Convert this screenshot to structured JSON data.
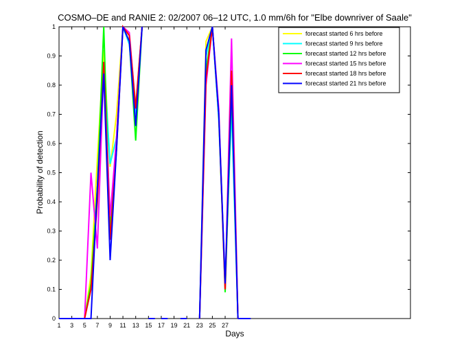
{
  "chart_data": {
    "type": "line",
    "title": "COSMO–DE and RANIE 2: 02/2007 06–12 UTC, 1.0 mm/6h for \"Elbe downriver of Saale\"",
    "xlabel": "Days",
    "ylabel": "Probability of detection",
    "xlim": [
      1,
      56
    ],
    "ylim": [
      0,
      1
    ],
    "xticks": [
      1,
      3,
      5,
      7,
      9,
      11,
      13,
      15,
      17,
      19,
      21,
      23,
      25,
      27
    ],
    "yticks": [
      0,
      0.1,
      0.2,
      0.3,
      0.4,
      0.5,
      0.6,
      0.7,
      0.8,
      0.9,
      1
    ],
    "ytick_labels": [
      "0",
      "0.1",
      "0.2",
      "0.3",
      "0.4",
      "0.5",
      "0.6",
      "0.7",
      "0.8",
      "0.9",
      "1"
    ],
    "grid": false,
    "legend_position": "top-right",
    "series": [
      {
        "name": "forecast started 6 hrs before",
        "color": "#ffff00",
        "segments": [
          [
            [
              1,
              0
            ],
            [
              2,
              0
            ],
            [
              3,
              0
            ],
            [
              4,
              0
            ],
            [
              5,
              0
            ]
          ],
          [
            [
              5,
              0
            ],
            [
              6,
              0.15
            ],
            [
              7,
              0.55
            ],
            [
              8,
              0.92
            ],
            [
              9,
              0.52
            ],
            [
              10,
              0.7
            ],
            [
              11,
              1
            ],
            [
              12,
              0.97
            ],
            [
              13,
              0.73
            ],
            [
              14,
              1
            ]
          ],
          [
            [
              23,
              0
            ],
            [
              24,
              0.95
            ],
            [
              25,
              1
            ],
            [
              26,
              0.7
            ],
            [
              27,
              0.1
            ],
            [
              28,
              0.75
            ],
            [
              29,
              0
            ]
          ]
        ]
      },
      {
        "name": "forecast started 9 hrs before",
        "color": "#00ffff",
        "segments": [
          [
            [
              1,
              0
            ],
            [
              2,
              0
            ],
            [
              3,
              0
            ],
            [
              4,
              0
            ],
            [
              5,
              0
            ]
          ],
          [
            [
              5,
              0
            ],
            [
              6,
              0.1
            ],
            [
              7,
              0.45
            ],
            [
              8,
              0.88
            ],
            [
              9,
              0.53
            ],
            [
              10,
              0.62
            ],
            [
              11,
              1
            ],
            [
              12,
              0.94
            ],
            [
              13,
              0.7
            ],
            [
              14,
              1
            ]
          ],
          [
            [
              23,
              0
            ],
            [
              24,
              0.9
            ],
            [
              25,
              1
            ],
            [
              26,
              0.68
            ],
            [
              27,
              0.12
            ],
            [
              28,
              0.72
            ],
            [
              29,
              0
            ]
          ]
        ]
      },
      {
        "name": "forecast started 12 hrs before",
        "color": "#00ff00",
        "segments": [
          [
            [
              1,
              0
            ],
            [
              2,
              0
            ],
            [
              3,
              0
            ],
            [
              4,
              0
            ],
            [
              5,
              0
            ]
          ],
          [
            [
              5,
              0
            ],
            [
              6,
              0.12
            ],
            [
              7,
              0.45
            ],
            [
              8,
              1
            ],
            [
              9,
              0.3
            ],
            [
              10,
              0.62
            ],
            [
              11,
              1
            ],
            [
              12,
              0.95
            ],
            [
              13,
              0.61
            ],
            [
              14,
              1
            ]
          ],
          [
            [
              23,
              0
            ],
            [
              24,
              0.85
            ],
            [
              25,
              1
            ],
            [
              26,
              0.7
            ],
            [
              27,
              0.09
            ],
            [
              28,
              0.78
            ],
            [
              29,
              0
            ]
          ]
        ]
      },
      {
        "name": "forecast started 15 hrs before",
        "color": "#ff00ff",
        "segments": [
          [
            [
              1,
              0
            ],
            [
              2,
              0
            ],
            [
              3,
              0
            ],
            [
              4,
              0
            ],
            [
              5,
              0
            ]
          ],
          [
            [
              5,
              0
            ],
            [
              6,
              0.5
            ],
            [
              7,
              0.24
            ],
            [
              8,
              0.86
            ],
            [
              9,
              0.35
            ],
            [
              10,
              0.62
            ],
            [
              11,
              1
            ],
            [
              12,
              0.98
            ],
            [
              13,
              0.72
            ],
            [
              14,
              1
            ]
          ],
          [
            [
              23,
              0
            ],
            [
              24,
              0.8
            ],
            [
              25,
              1
            ],
            [
              26,
              0.72
            ],
            [
              27,
              0.1
            ],
            [
              28,
              0.96
            ],
            [
              29,
              0
            ]
          ]
        ]
      },
      {
        "name": "forecast started 18 hrs before",
        "color": "#ff0000",
        "segments": [
          [
            [
              1,
              0
            ],
            [
              2,
              0
            ],
            [
              3,
              0
            ],
            [
              4,
              0
            ],
            [
              5,
              0
            ]
          ],
          [
            [
              5,
              0
            ],
            [
              6,
              0.1
            ],
            [
              7,
              0.4
            ],
            [
              8,
              0.88
            ],
            [
              9,
              0.27
            ],
            [
              10,
              0.58
            ],
            [
              11,
              1
            ],
            [
              12,
              0.97
            ],
            [
              13,
              0.72
            ],
            [
              14,
              1
            ]
          ],
          [
            [
              23,
              0
            ],
            [
              24,
              0.82
            ],
            [
              25,
              1
            ],
            [
              26,
              0.7
            ],
            [
              27,
              0.1
            ],
            [
              28,
              0.85
            ],
            [
              29,
              0
            ]
          ]
        ]
      },
      {
        "name": "forecast started 21 hrs before",
        "color": "#0000ff",
        "segments": [
          [
            [
              1,
              0
            ],
            [
              2,
              0
            ],
            [
              3,
              0
            ],
            [
              4,
              0
            ],
            [
              5,
              0
            ]
          ],
          [
            [
              5,
              0
            ],
            [
              6,
              0
            ],
            [
              7,
              0.45
            ],
            [
              8,
              0.84
            ],
            [
              9,
              0.2
            ],
            [
              10,
              0.58
            ],
            [
              11,
              1
            ],
            [
              12,
              0.95
            ],
            [
              13,
              0.66
            ],
            [
              14,
              1
            ]
          ],
          [
            [
              23,
              0
            ],
            [
              24,
              0.92
            ],
            [
              25,
              1
            ],
            [
              26,
              0.7
            ],
            [
              27,
              0.12
            ],
            [
              28,
              0.8
            ],
            [
              29,
              0
            ]
          ]
        ]
      }
    ],
    "baseline_segments": [
      [
        [
          15,
          0
        ],
        [
          16,
          0
        ]
      ],
      [
        [
          17,
          0
        ],
        [
          18,
          0
        ]
      ],
      [
        [
          20,
          0
        ],
        [
          21,
          0
        ]
      ],
      [
        [
          29,
          0
        ],
        [
          31,
          0
        ]
      ]
    ]
  }
}
